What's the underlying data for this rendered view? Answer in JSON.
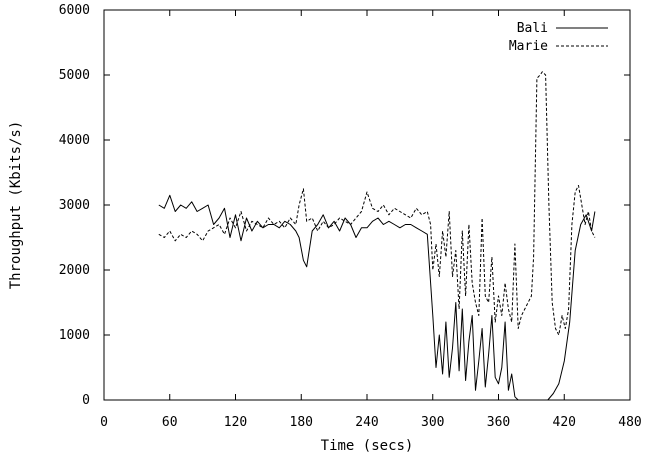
{
  "chart_data": {
    "type": "line",
    "title": "",
    "xlabel": "Time (secs)",
    "ylabel": "Throughput (Kbits/s)",
    "xlim": [
      0,
      480
    ],
    "ylim": [
      0,
      6000
    ],
    "xticks": [
      0,
      60,
      120,
      180,
      240,
      300,
      360,
      420,
      480
    ],
    "yticks": [
      0,
      1000,
      2000,
      3000,
      4000,
      5000,
      6000
    ],
    "grid": false,
    "legend_position": "top-right",
    "series": [
      {
        "name": "Bali",
        "style": "solid",
        "color": "#000000",
        "x": [
          50,
          55,
          60,
          65,
          70,
          75,
          80,
          85,
          90,
          95,
          100,
          105,
          110,
          115,
          120,
          125,
          130,
          135,
          140,
          145,
          150,
          155,
          160,
          165,
          170,
          175,
          178,
          182,
          185,
          190,
          195,
          200,
          205,
          210,
          215,
          220,
          225,
          230,
          235,
          240,
          245,
          250,
          255,
          260,
          265,
          270,
          275,
          280,
          285,
          290,
          295,
          298,
          300,
          303,
          306,
          309,
          312,
          315,
          318,
          321,
          324,
          327,
          330,
          333,
          336,
          339,
          342,
          345,
          348,
          351,
          354,
          357,
          360,
          363,
          366,
          369,
          372,
          375,
          378,
          381,
          384,
          390,
          395,
          400,
          405,
          410,
          415,
          420,
          425,
          430,
          435,
          440,
          445,
          448
        ],
        "y": [
          3000,
          2950,
          3150,
          2900,
          3000,
          2950,
          3050,
          2900,
          2950,
          3000,
          2700,
          2800,
          2950,
          2500,
          2850,
          2450,
          2800,
          2600,
          2750,
          2650,
          2700,
          2700,
          2650,
          2750,
          2700,
          2600,
          2500,
          2150,
          2050,
          2600,
          2700,
          2850,
          2650,
          2750,
          2600,
          2800,
          2700,
          2500,
          2650,
          2650,
          2750,
          2800,
          2700,
          2750,
          2700,
          2650,
          2700,
          2700,
          2650,
          2600,
          2550,
          1800,
          1300,
          500,
          1000,
          400,
          1200,
          350,
          800,
          1500,
          450,
          1400,
          300,
          900,
          1300,
          150,
          600,
          1100,
          200,
          700,
          1300,
          350,
          250,
          500,
          1200,
          150,
          400,
          50,
          0,
          0,
          0,
          0,
          0,
          0,
          0,
          100,
          250,
          600,
          1200,
          2300,
          2700,
          2850,
          2600,
          2900
        ]
      },
      {
        "name": "Marie",
        "style": "dashed",
        "color": "#000000",
        "x": [
          50,
          55,
          60,
          65,
          70,
          75,
          80,
          85,
          90,
          95,
          100,
          105,
          110,
          115,
          120,
          125,
          130,
          135,
          140,
          145,
          150,
          155,
          160,
          165,
          170,
          175,
          178,
          182,
          185,
          190,
          195,
          200,
          205,
          210,
          215,
          220,
          225,
          230,
          235,
          240,
          245,
          250,
          255,
          260,
          265,
          270,
          275,
          280,
          285,
          290,
          295,
          298,
          300,
          303,
          306,
          309,
          312,
          315,
          318,
          321,
          324,
          327,
          330,
          333,
          336,
          339,
          342,
          345,
          348,
          351,
          354,
          357,
          360,
          363,
          366,
          369,
          372,
          375,
          378,
          381,
          384,
          387,
          390,
          392,
          395,
          398,
          400,
          403,
          406,
          409,
          412,
          415,
          418,
          421,
          424,
          427,
          430,
          433,
          436,
          439,
          442,
          445,
          448
        ],
        "y": [
          2550,
          2500,
          2600,
          2450,
          2550,
          2500,
          2600,
          2550,
          2450,
          2600,
          2650,
          2700,
          2550,
          2800,
          2650,
          2900,
          2600,
          2750,
          2700,
          2650,
          2800,
          2700,
          2750,
          2650,
          2800,
          2700,
          3000,
          3250,
          2750,
          2800,
          2600,
          2750,
          2650,
          2700,
          2800,
          2750,
          2700,
          2800,
          2900,
          3200,
          2950,
          2900,
          3000,
          2850,
          2950,
          2900,
          2850,
          2800,
          2950,
          2850,
          2900,
          2700,
          2000,
          2400,
          1900,
          2600,
          2200,
          2900,
          1900,
          2300,
          1400,
          2600,
          1600,
          2700,
          1800,
          1500,
          1300,
          2800,
          1600,
          1500,
          2200,
          1200,
          1600,
          1300,
          1800,
          1400,
          1200,
          2400,
          1100,
          1300,
          1400,
          1500,
          1600,
          2200,
          4950,
          5000,
          5050,
          5000,
          3000,
          1500,
          1100,
          1000,
          1300,
          1100,
          1400,
          2700,
          3200,
          3300,
          3000,
          2700,
          2900,
          2600,
          2500
        ]
      }
    ]
  }
}
